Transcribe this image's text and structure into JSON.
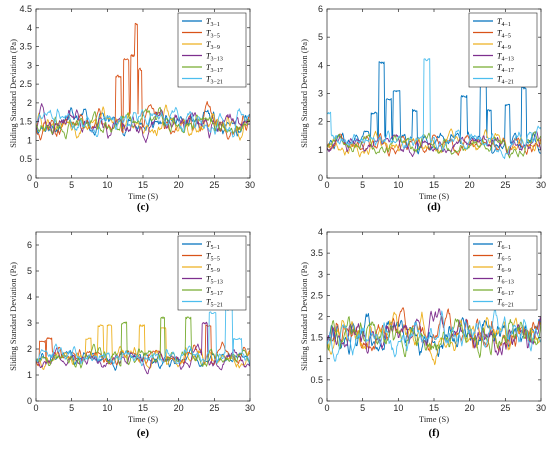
{
  "chart_data": [
    {
      "type": "line",
      "panel_label": "(c)",
      "xlabel": "Time (S)",
      "ylabel": "Sliding Standard Deviation (Pa)",
      "xlim": [
        0,
        30
      ],
      "ylim": [
        0,
        4.5
      ],
      "xticks": [
        "0",
        "5",
        "10",
        "15",
        "20",
        "25",
        "30"
      ],
      "yticks": [
        "0",
        "0.5",
        "1",
        "1.5",
        "2",
        "2.5",
        "3",
        "3.5",
        "4",
        "4.5"
      ],
      "ytick_values": [
        0,
        0.5,
        1,
        1.5,
        2,
        2.5,
        3,
        3.5,
        4,
        4.5
      ],
      "legend_position": "top-right",
      "series": [
        {
          "name": "T3−1",
          "sub": "3−1",
          "color": "#0072BD",
          "baseline": 1.45,
          "amp": 0.22,
          "seed": 11,
          "spikes": []
        },
        {
          "name": "T3−5",
          "sub": "3−5",
          "color": "#D95319",
          "baseline": 1.45,
          "amp": 0.22,
          "seed": 23,
          "spikes": [
            [
              11.2,
              11.9,
              2.7
            ],
            [
              12.3,
              13.0,
              3.15
            ],
            [
              13.3,
              13.9,
              3.25
            ],
            [
              13.9,
              14.2,
              4.1
            ],
            [
              14.4,
              14.8,
              2.9
            ]
          ]
        },
        {
          "name": "T3−9",
          "sub": "3−9",
          "color": "#EDB120",
          "baseline": 1.45,
          "amp": 0.22,
          "seed": 37,
          "spikes": []
        },
        {
          "name": "T3−13",
          "sub": "3−13",
          "color": "#7E2F8E",
          "baseline": 1.45,
          "amp": 0.22,
          "seed": 41,
          "spikes": []
        },
        {
          "name": "T3−17",
          "sub": "3−17",
          "color": "#77AC30",
          "baseline": 1.45,
          "amp": 0.22,
          "seed": 53,
          "spikes": []
        },
        {
          "name": "T3−21",
          "sub": "3−21",
          "color": "#4DBEEE",
          "baseline": 1.55,
          "amp": 0.2,
          "seed": 67,
          "spikes": []
        }
      ]
    },
    {
      "type": "line",
      "panel_label": "(d)",
      "xlabel": "Time (S)",
      "ylabel": "Sliding Standard Deviation (Pa)",
      "xlim": [
        0,
        30
      ],
      "ylim": [
        0,
        6
      ],
      "xticks": [
        "0",
        "5",
        "10",
        "15",
        "20",
        "25",
        "30"
      ],
      "yticks": [
        "0",
        "1",
        "2",
        "3",
        "4",
        "5",
        "6"
      ],
      "ytick_values": [
        0,
        1,
        2,
        3,
        4,
        5,
        6
      ],
      "legend_position": "top-right",
      "series": [
        {
          "name": "T4−1",
          "sub": "4−1",
          "color": "#0072BD",
          "baseline": 1.3,
          "amp": 0.25,
          "seed": 71,
          "spikes": [
            [
              6.2,
              7.0,
              2.3
            ],
            [
              7.3,
              8.0,
              4.1
            ],
            [
              8.3,
              9.0,
              2.8
            ],
            [
              9.3,
              10.2,
              3.1
            ],
            [
              12.0,
              12.6,
              2.4
            ],
            [
              18.8,
              19.6,
              2.9
            ],
            [
              21.5,
              22.3,
              3.6
            ],
            [
              22.5,
              23.0,
              2.4
            ],
            [
              25.0,
              25.6,
              2.6
            ],
            [
              27.3,
              27.9,
              3.2
            ]
          ]
        },
        {
          "name": "T4−5",
          "sub": "4−5",
          "color": "#D95319",
          "baseline": 1.2,
          "amp": 0.22,
          "seed": 83,
          "spikes": []
        },
        {
          "name": "T4−9",
          "sub": "4−9",
          "color": "#EDB120",
          "baseline": 1.2,
          "amp": 0.22,
          "seed": 97,
          "spikes": []
        },
        {
          "name": "T4−13",
          "sub": "4−13",
          "color": "#7E2F8E",
          "baseline": 1.2,
          "amp": 0.22,
          "seed": 101,
          "spikes": []
        },
        {
          "name": "T4−17",
          "sub": "4−17",
          "color": "#77AC30",
          "baseline": 1.2,
          "amp": 0.22,
          "seed": 113,
          "spikes": []
        },
        {
          "name": "T4−21",
          "sub": "4−21",
          "color": "#4DBEEE",
          "baseline": 1.35,
          "amp": 0.25,
          "seed": 127,
          "spikes": [
            [
              13.6,
              14.4,
              4.2
            ],
            [
              0.0,
              0.5,
              2.3
            ]
          ]
        }
      ]
    },
    {
      "type": "line",
      "panel_label": "(e)",
      "xlabel": "Time (S)",
      "ylabel": "Sliding Standard Deviation (Pa)",
      "xlim": [
        0,
        30
      ],
      "ylim": [
        0,
        6.5
      ],
      "xticks": [
        "0",
        "5",
        "10",
        "15",
        "20",
        "25",
        "30"
      ],
      "yticks": [
        "0",
        "1",
        "2",
        "3",
        "4",
        "5",
        "6"
      ],
      "ytick_values": [
        0,
        1,
        2,
        3,
        4,
        5,
        6
      ],
      "legend_position": "top-right",
      "series": [
        {
          "name": "T5−1",
          "sub": "5−1",
          "color": "#0072BD",
          "baseline": 1.65,
          "amp": 0.22,
          "seed": 131,
          "spikes": []
        },
        {
          "name": "T5−5",
          "sub": "5−5",
          "color": "#D95319",
          "baseline": 1.7,
          "amp": 0.25,
          "seed": 139,
          "spikes": [
            [
              0.5,
              1.3,
              2.3
            ],
            [
              1.5,
              2.2,
              2.4
            ],
            [
              23.8,
              24.5,
              2.9
            ]
          ]
        },
        {
          "name": "T5−9",
          "sub": "5−9",
          "color": "#EDB120",
          "baseline": 1.7,
          "amp": 0.25,
          "seed": 149,
          "spikes": [
            [
              7.0,
              7.7,
              2.4
            ],
            [
              8.7,
              9.4,
              2.9
            ],
            [
              10.0,
              10.6,
              2.9
            ],
            [
              14.5,
              15.2,
              2.9
            ],
            [
              17.5,
              18.2,
              2.8
            ]
          ]
        },
        {
          "name": "T5−13",
          "sub": "5−13",
          "color": "#7E2F8E",
          "baseline": 1.65,
          "amp": 0.22,
          "seed": 151,
          "spikes": [
            [
              23.3,
              24.0,
              3.0
            ]
          ]
        },
        {
          "name": "T5−17",
          "sub": "5−17",
          "color": "#77AC30",
          "baseline": 1.7,
          "amp": 0.25,
          "seed": 157,
          "spikes": [
            [
              12.0,
              12.7,
              3.0
            ],
            [
              17.5,
              18.0,
              3.2
            ],
            [
              21.0,
              21.7,
              3.2
            ]
          ]
        },
        {
          "name": "T5−21",
          "sub": "5−21",
          "color": "#4DBEEE",
          "baseline": 1.75,
          "amp": 0.25,
          "seed": 163,
          "spikes": [
            [
              24.3,
              25.2,
              3.4
            ],
            [
              26.6,
              27.5,
              3.5
            ],
            [
              27.7,
              28.8,
              2.4
            ]
          ]
        }
      ]
    },
    {
      "type": "line",
      "panel_label": "(f)",
      "xlabel": "Time (S)",
      "ylabel": "Sliding Standard Deviation (Pa)",
      "xlim": [
        0,
        30
      ],
      "ylim": [
        0,
        4
      ],
      "xticks": [
        "0",
        "5",
        "10",
        "15",
        "20",
        "25",
        "30"
      ],
      "yticks": [
        "0",
        "0.5",
        "1",
        "1.5",
        "2",
        "2.5",
        "3",
        "3.5",
        "4"
      ],
      "ytick_values": [
        0,
        0.5,
        1,
        1.5,
        2,
        2.5,
        3,
        3.5,
        4
      ],
      "legend_position": "top-right",
      "series": [
        {
          "name": "T6−1",
          "sub": "6−1",
          "color": "#0072BD",
          "baseline": 1.55,
          "amp": 0.28,
          "seed": 167,
          "spikes": []
        },
        {
          "name": "T6−5",
          "sub": "6−5",
          "color": "#D95319",
          "baseline": 1.55,
          "amp": 0.28,
          "seed": 173,
          "spikes": []
        },
        {
          "name": "T6−9",
          "sub": "6−9",
          "color": "#EDB120",
          "baseline": 1.55,
          "amp": 0.28,
          "seed": 179,
          "spikes": []
        },
        {
          "name": "T6−13",
          "sub": "6−13",
          "color": "#7E2F8E",
          "baseline": 1.55,
          "amp": 0.28,
          "seed": 181,
          "spikes": []
        },
        {
          "name": "T6−17",
          "sub": "6−17",
          "color": "#77AC30",
          "baseline": 1.55,
          "amp": 0.28,
          "seed": 191,
          "spikes": []
        },
        {
          "name": "T6−21",
          "sub": "6−21",
          "color": "#4DBEEE",
          "baseline": 1.55,
          "amp": 0.28,
          "seed": 193,
          "spikes": []
        }
      ]
    }
  ]
}
